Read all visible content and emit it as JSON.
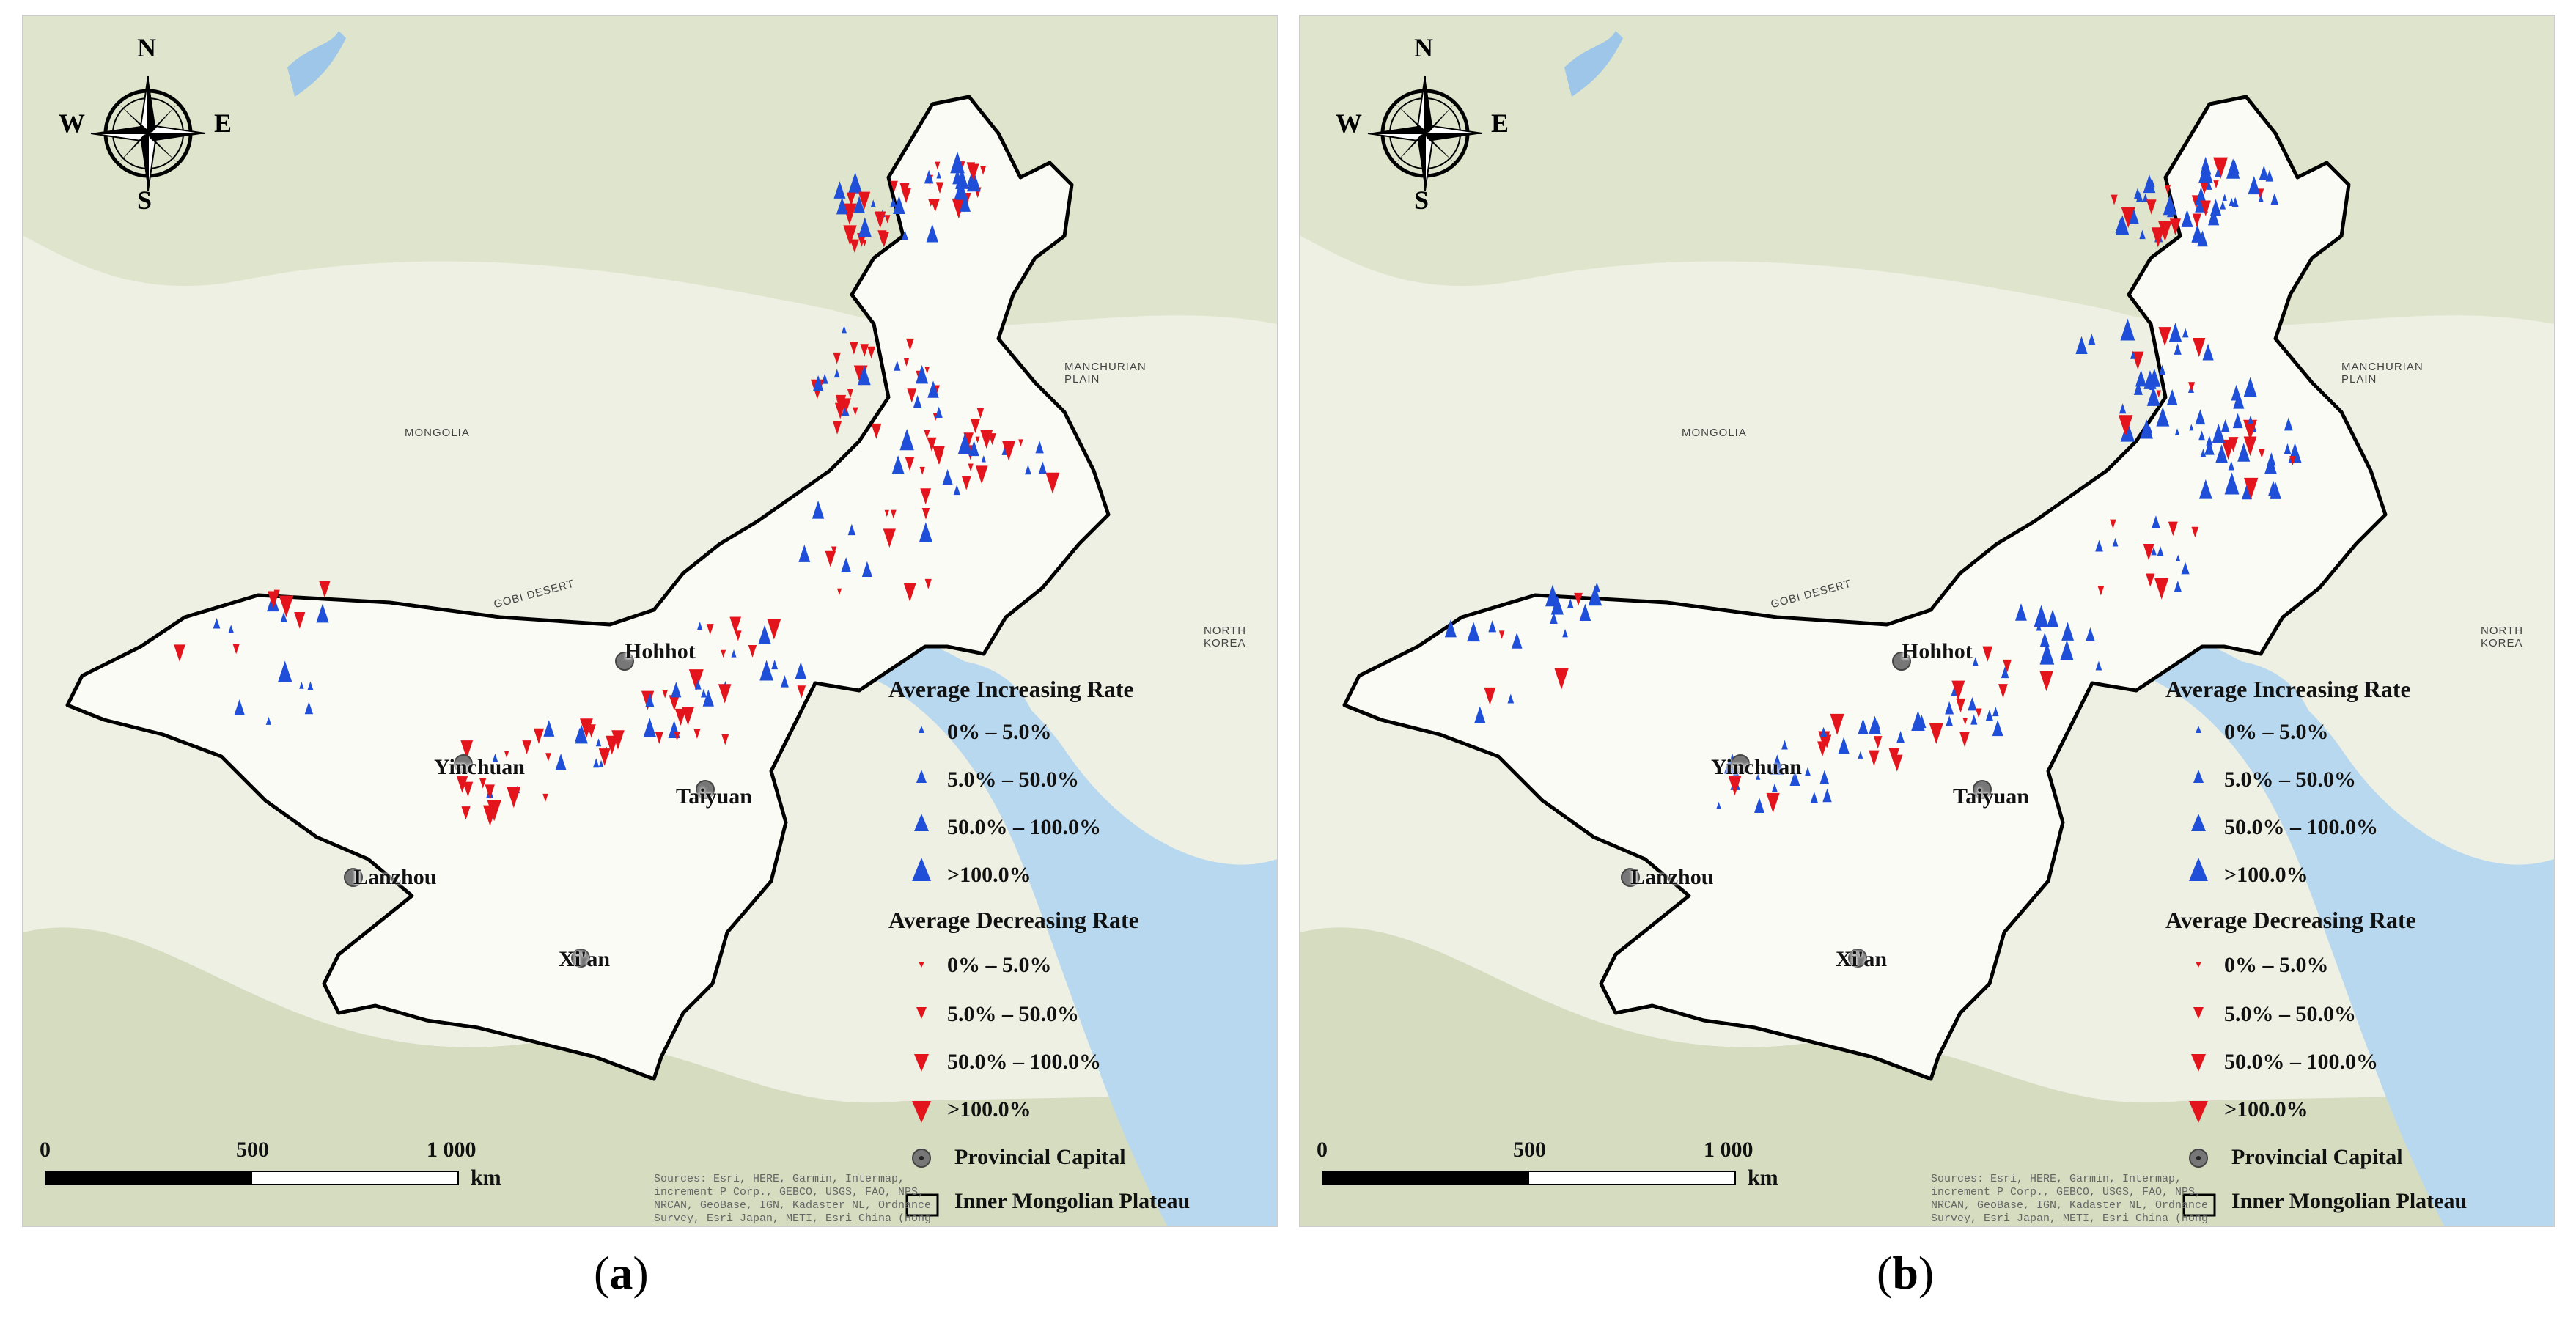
{
  "panels": [
    {
      "id": "a",
      "caption": "a"
    },
    {
      "id": "b",
      "caption": "b"
    }
  ],
  "compass": {
    "n": "N",
    "s": "S",
    "e": "E",
    "w": "W"
  },
  "cities": {
    "hohhot": "Hohhot",
    "yinchuan": "Yinchuan",
    "taiyuan": "Taiyuan",
    "lanzhou": "Lanzhou",
    "xian": "Xi'an"
  },
  "basemap_labels": {
    "mongolia": "MONGOLIA",
    "gobi": "GOBI DESERT",
    "north_korea": "NORTH\nKOREA",
    "manchurian": "MANCHURIAN\nPLAIN"
  },
  "legend": {
    "increasing_title": "Average Increasing Rate",
    "increasing": [
      "0% – 5.0%",
      "5.0% – 50.0%",
      "50.0% – 100.0%",
      ">100.0%"
    ],
    "decreasing_title": "Average Decreasing Rate",
    "decreasing": [
      "0% – 5.0%",
      "5.0% – 50.0%",
      "50.0% – 100.0%",
      ">100.0%"
    ],
    "capital": "Provincial Capital",
    "plateau": "Inner Mongolian Plateau",
    "increasing_color": "#1f4fd8",
    "decreasing_color": "#e3141b"
  },
  "scale": {
    "ticks": [
      "0",
      "500",
      "1 000"
    ],
    "unit": "km"
  },
  "attribution": "Sources: Esri, HERE, Garmin, Intermap, increment P Corp., GEBCO, USGS, FAO, NPS, NRCAN, GeoBase, IGN, Kadaster NL, Ordnance Survey, Esri Japan, METI, Esri China (Hong Kong), (c) OpenStreetMap contributors, and the GIS User Community"
}
